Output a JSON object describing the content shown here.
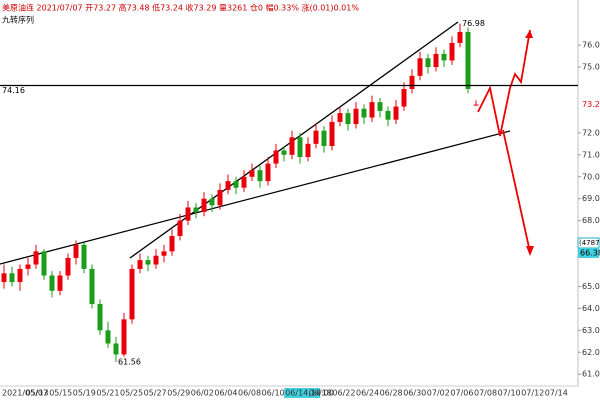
{
  "chart_data": {
    "type": "candlestick",
    "header": "美原油连 2021/07/07 开73.27 高73.48 低73.24 收73.29 量3261 仓0 幅0.33% 涨(0.01)0.01%",
    "subheader": "九转序列",
    "up_color": "#e8000b",
    "down_color": "#1a9e1a",
    "ylim": [
      60.6,
      77.6
    ],
    "yticks": [
      {
        "value": 61,
        "label": "61.00"
      },
      {
        "value": 62,
        "label": "62.00"
      },
      {
        "value": 63,
        "label": "63.00"
      },
      {
        "value": 64,
        "label": "64.00"
      },
      {
        "value": 65,
        "label": "65.00"
      },
      {
        "value": 67,
        "label": "67.00"
      },
      {
        "value": 68,
        "label": "68.00"
      },
      {
        "value": 69,
        "label": "69.00"
      },
      {
        "value": 70,
        "label": "70.00"
      },
      {
        "value": 71,
        "label": "71.00"
      },
      {
        "value": 72,
        "label": "72.00"
      },
      {
        "value": 75,
        "label": "75.00"
      },
      {
        "value": 76,
        "label": "76.00"
      }
    ],
    "x_labels": [
      "2021/05/07",
      "05/13",
      "05/15",
      "05/19",
      "05/21",
      "05/25",
      "05/27",
      "05/29",
      "06/02",
      "06/04",
      "06/08",
      "06/10",
      "06/14,14:00",
      "06/18",
      "06/22",
      "06/24",
      "06/28",
      "06/30",
      "07/02",
      "07/06",
      "07/08",
      "07/10",
      "07/12",
      "07/14"
    ],
    "hline": 74.16,
    "high_label": 76.98,
    "low_label": 61.56,
    "last_price": 73.29,
    "volume_box": "(4787)",
    "price_box": 66.38,
    "candles": [
      [
        65.2,
        66.0,
        64.9,
        65.6
      ],
      [
        65.6,
        65.9,
        65.0,
        65.2
      ],
      [
        65.2,
        66.0,
        64.8,
        65.8
      ],
      [
        65.8,
        66.3,
        65.5,
        66.0
      ],
      [
        66.0,
        66.9,
        65.8,
        66.6
      ],
      [
        66.6,
        66.7,
        65.3,
        65.5
      ],
      [
        65.5,
        65.7,
        64.5,
        64.8
      ],
      [
        64.8,
        65.7,
        64.6,
        65.5
      ],
      [
        65.5,
        66.5,
        65.3,
        66.3
      ],
      [
        66.3,
        67.1,
        66.0,
        66.9
      ],
      [
        66.9,
        67.0,
        65.6,
        65.8
      ],
      [
        65.8,
        66.0,
        64.0,
        64.2
      ],
      [
        64.2,
        64.4,
        62.8,
        63.0
      ],
      [
        63.0,
        63.4,
        62.2,
        62.4
      ],
      [
        62.4,
        62.7,
        61.56,
        61.9
      ],
      [
        61.9,
        63.8,
        61.8,
        63.5
      ],
      [
        63.5,
        66.0,
        63.3,
        65.8
      ],
      [
        65.8,
        66.5,
        65.6,
        66.2
      ],
      [
        66.2,
        66.4,
        65.7,
        66.0
      ],
      [
        66.0,
        66.7,
        65.8,
        66.4
      ],
      [
        66.4,
        66.9,
        66.1,
        66.6
      ],
      [
        66.6,
        67.6,
        66.4,
        67.3
      ],
      [
        67.3,
        68.3,
        67.1,
        68.0
      ],
      [
        68.0,
        68.9,
        67.8,
        68.6
      ],
      [
        68.6,
        68.8,
        68.1,
        68.4
      ],
      [
        68.4,
        69.3,
        68.2,
        69.0
      ],
      [
        69.0,
        69.2,
        68.4,
        68.7
      ],
      [
        68.7,
        69.7,
        68.5,
        69.4
      ],
      [
        69.4,
        70.1,
        69.2,
        69.8
      ],
      [
        69.8,
        70.0,
        69.2,
        69.5
      ],
      [
        69.5,
        70.3,
        69.3,
        70.0
      ],
      [
        70.0,
        70.6,
        69.8,
        70.3
      ],
      [
        70.3,
        70.5,
        69.5,
        69.8
      ],
      [
        69.8,
        70.9,
        69.6,
        70.6
      ],
      [
        70.6,
        71.5,
        70.4,
        71.2
      ],
      [
        71.2,
        71.4,
        70.7,
        71.0
      ],
      [
        71.0,
        72.1,
        70.8,
        71.8
      ],
      [
        71.8,
        72.0,
        70.6,
        70.9
      ],
      [
        70.9,
        71.8,
        70.7,
        71.5
      ],
      [
        71.5,
        72.4,
        71.3,
        72.1
      ],
      [
        72.1,
        72.3,
        71.1,
        71.4
      ],
      [
        71.4,
        72.8,
        71.2,
        72.5
      ],
      [
        72.5,
        73.2,
        72.3,
        72.9
      ],
      [
        72.9,
        73.1,
        72.1,
        72.4
      ],
      [
        72.4,
        73.4,
        72.2,
        73.1
      ],
      [
        73.1,
        73.3,
        72.4,
        72.7
      ],
      [
        72.7,
        73.7,
        72.5,
        73.4
      ],
      [
        73.4,
        73.6,
        72.7,
        73.0
      ],
      [
        73.0,
        73.2,
        72.3,
        72.6
      ],
      [
        72.6,
        73.5,
        72.4,
        73.2
      ],
      [
        73.2,
        74.3,
        73.0,
        74.0
      ],
      [
        74.0,
        74.9,
        73.8,
        74.6
      ],
      [
        74.6,
        75.7,
        74.4,
        75.4
      ],
      [
        75.4,
        75.6,
        74.7,
        75.0
      ],
      [
        75.0,
        75.9,
        74.8,
        75.6
      ],
      [
        75.6,
        75.8,
        75.0,
        75.3
      ],
      [
        75.3,
        76.4,
        75.1,
        76.1
      ],
      [
        76.1,
        76.98,
        75.9,
        76.6
      ],
      [
        76.6,
        76.8,
        73.8,
        74.0
      ],
      [
        73.27,
        73.48,
        73.24,
        73.29
      ]
    ]
  }
}
